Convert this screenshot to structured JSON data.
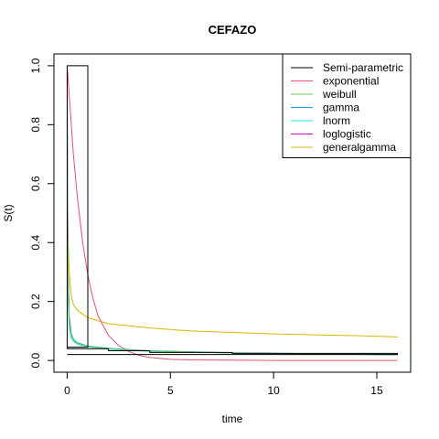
{
  "chart_data": {
    "type": "line",
    "title": "CEFAZO",
    "xlabel": "time",
    "ylabel": "S(t)",
    "xlim": [
      -0.64,
      16.64
    ],
    "ylim": [
      -0.04,
      1.04
    ],
    "xticks": [
      0,
      5,
      10,
      15
    ],
    "yticks": [
      0.0,
      0.2,
      0.4,
      0.6,
      0.8,
      1.0
    ],
    "grid": false,
    "legend_position": "top-right",
    "series": [
      {
        "name": "Semi-parametric",
        "color": "#000000",
        "kind": "step",
        "x": [
          0,
          0,
          1,
          1,
          0,
          0,
          2,
          2,
          4,
          4,
          8,
          8,
          16,
          16,
          0
        ],
        "y": [
          0.045,
          1.0,
          1.0,
          0.045,
          0.045,
          0.04,
          0.04,
          0.033,
          0.033,
          0.027,
          0.027,
          0.024,
          0.024,
          0.02,
          0.02
        ]
      },
      {
        "name": "exponential",
        "color": "#DF536B",
        "x": [
          0,
          0.1,
          0.2,
          0.3,
          0.5,
          0.75,
          1.0,
          1.25,
          1.5,
          2.0,
          2.5,
          3.0,
          3.5,
          4.0,
          5.0,
          6.0,
          8.0,
          10.0,
          12.0,
          16.0
        ],
        "y": [
          1.0,
          0.9,
          0.8,
          0.7,
          0.55,
          0.4,
          0.29,
          0.21,
          0.15,
          0.085,
          0.05,
          0.03,
          0.017,
          0.01,
          0.004,
          0.002,
          0.001,
          0.0,
          0.0,
          0.0
        ]
      },
      {
        "name": "weibull",
        "color": "#61D04F",
        "x": [
          0,
          0.02,
          0.05,
          0.1,
          0.2,
          0.3,
          0.5,
          1.0,
          2.0,
          4.0,
          8.0,
          16.0
        ],
        "y": [
          0.78,
          0.45,
          0.25,
          0.13,
          0.085,
          0.07,
          0.058,
          0.048,
          0.04,
          0.032,
          0.025,
          0.019
        ]
      },
      {
        "name": "gamma",
        "color": "#2297E6",
        "x": [
          0,
          0.02,
          0.05,
          0.1,
          0.2,
          0.3,
          0.5,
          1.0,
          2.0,
          4.0,
          8.0,
          16.0
        ],
        "y": [
          0.82,
          0.5,
          0.28,
          0.14,
          0.09,
          0.072,
          0.06,
          0.049,
          0.041,
          0.033,
          0.026,
          0.02
        ]
      },
      {
        "name": "lnorm",
        "color": "#28E2E5",
        "x": [
          0,
          0.02,
          0.05,
          0.1,
          0.2,
          0.3,
          0.5,
          1.0,
          2.0,
          4.0,
          8.0,
          16.0
        ],
        "y": [
          0.88,
          0.4,
          0.2,
          0.11,
          0.075,
          0.065,
          0.055,
          0.046,
          0.038,
          0.031,
          0.025,
          0.019
        ]
      },
      {
        "name": "loglogistic",
        "color": "#CD0BBC",
        "x": [
          0,
          0.02,
          0.05,
          0.1,
          0.2,
          0.3,
          0.5,
          1.0,
          2.0,
          4.0,
          8.0,
          16.0
        ],
        "y": [
          0.98,
          0.6,
          0.3,
          0.15,
          0.09,
          0.072,
          0.059,
          0.048,
          0.04,
          0.032,
          0.025,
          0.02
        ]
      },
      {
        "name": "generalgamma",
        "color": "#DDB600",
        "x": [
          0,
          0.02,
          0.05,
          0.1,
          0.2,
          0.3,
          0.5,
          1.0,
          2.0,
          4.0,
          6.0,
          8.0,
          10.0,
          12.0,
          14.0,
          16.0
        ],
        "y": [
          0.82,
          0.55,
          0.4,
          0.3,
          0.22,
          0.19,
          0.17,
          0.145,
          0.125,
          0.11,
          0.1,
          0.095,
          0.09,
          0.087,
          0.084,
          0.08
        ]
      }
    ]
  }
}
